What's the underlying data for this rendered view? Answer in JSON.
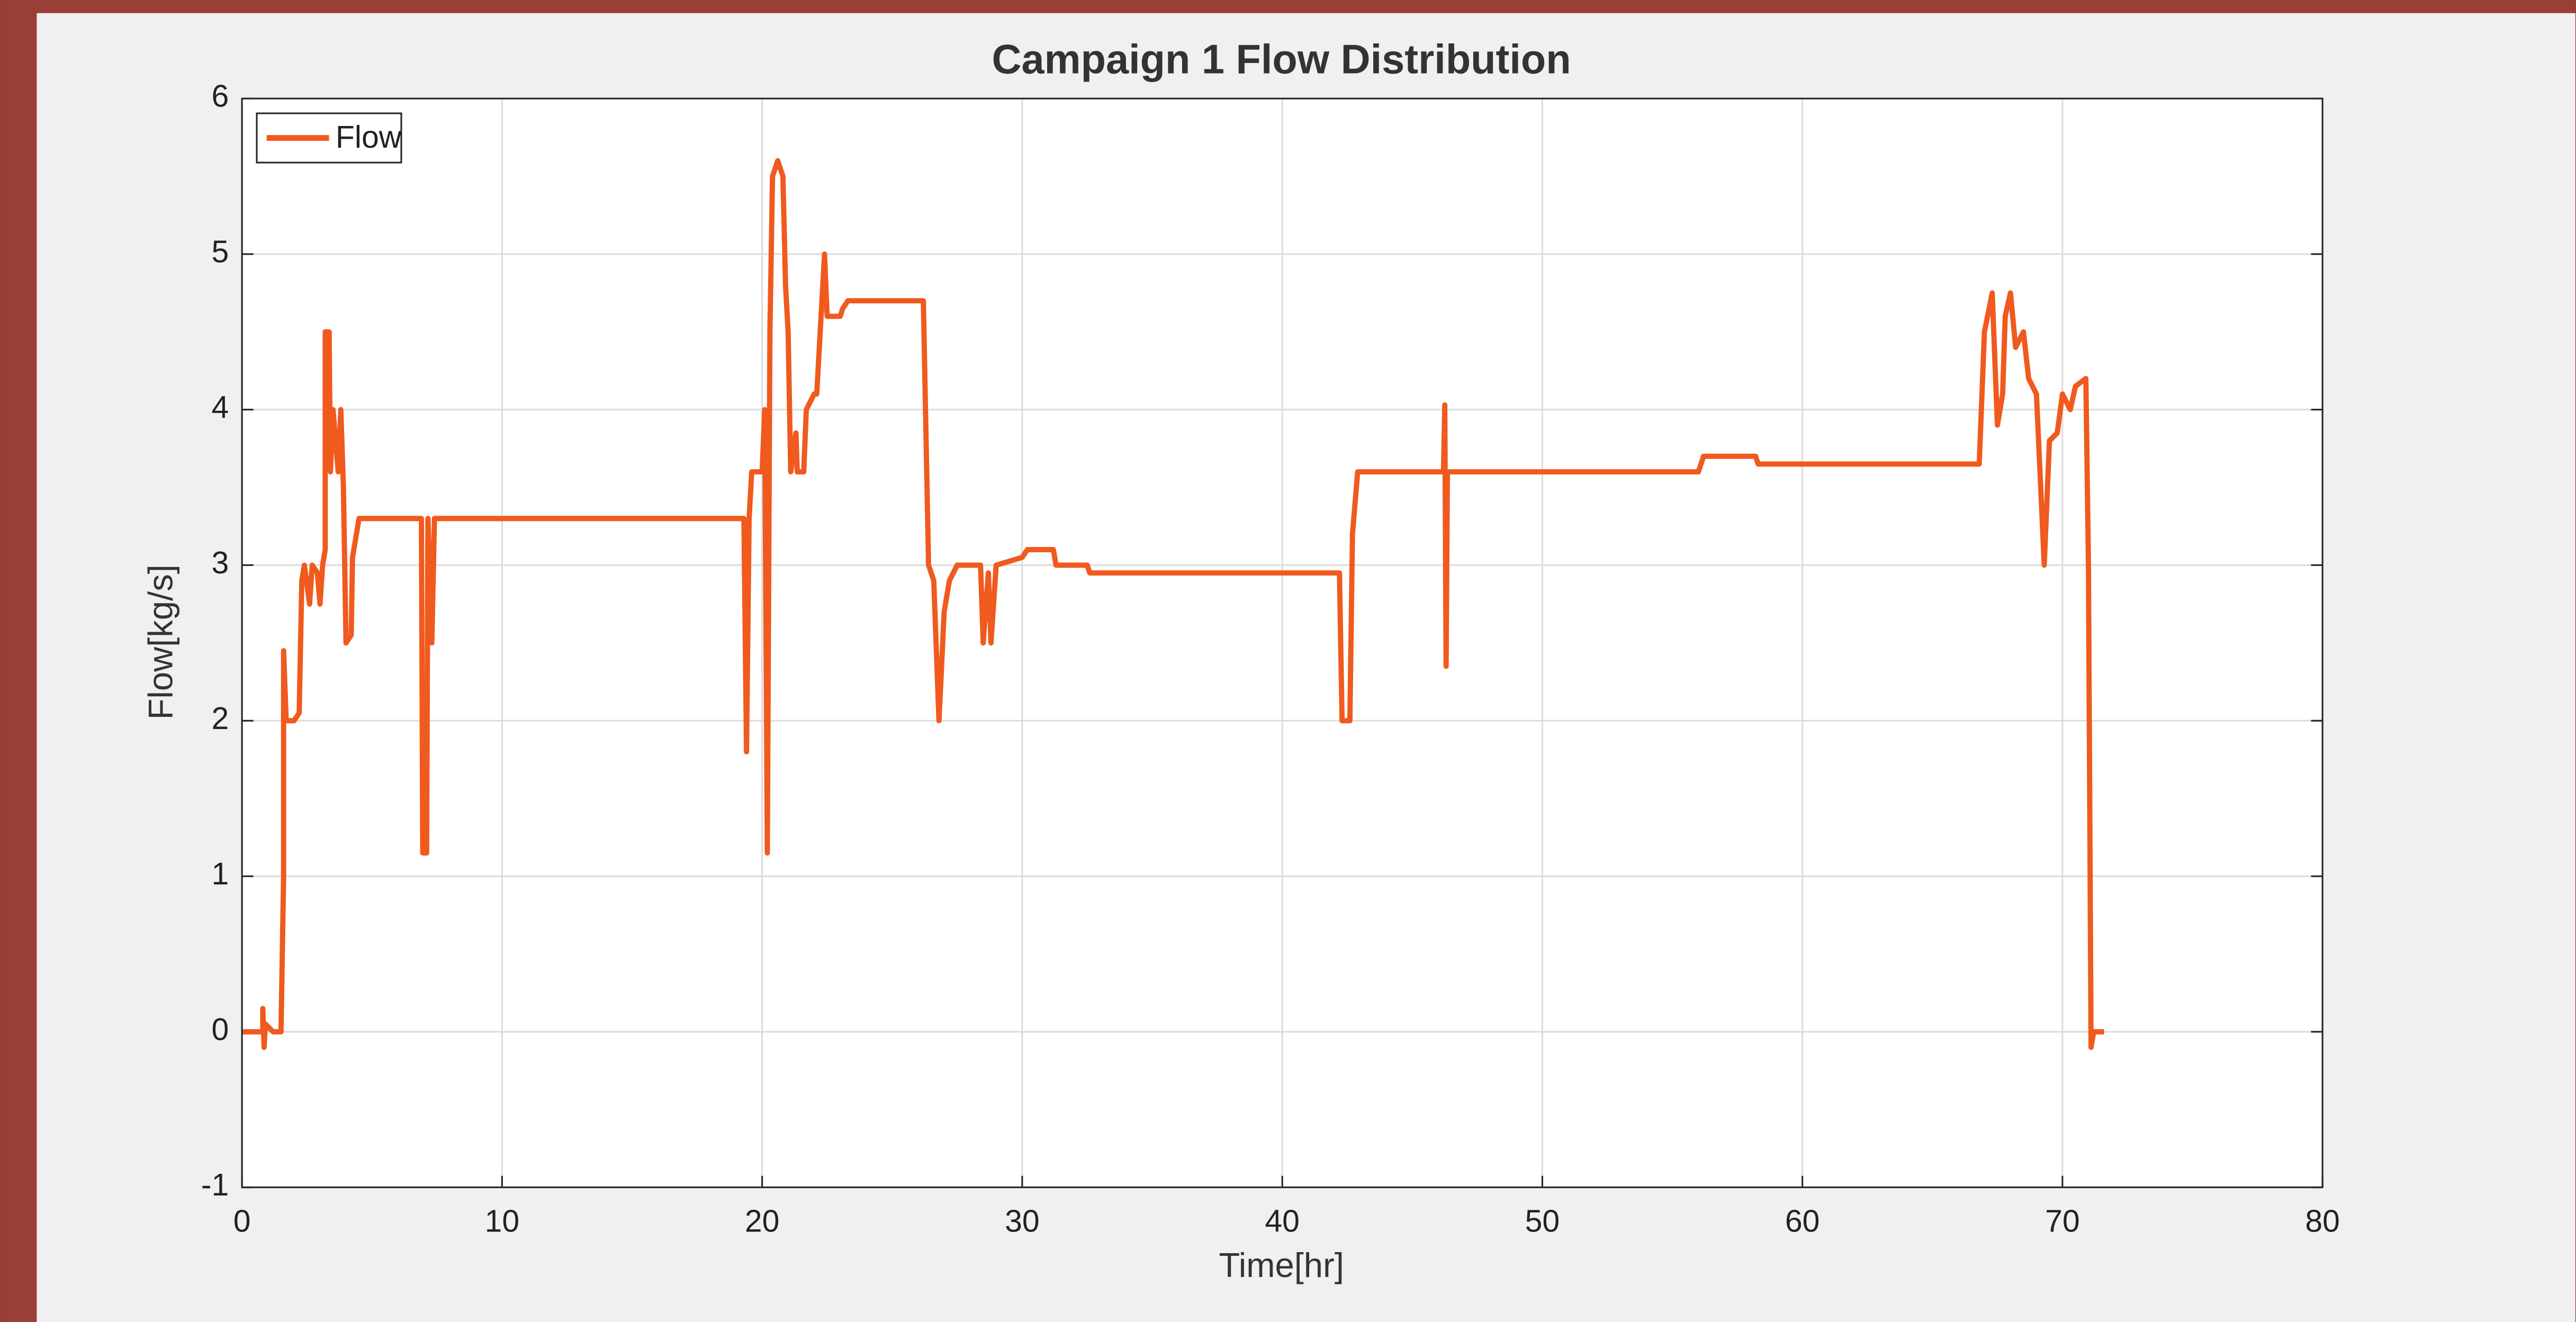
{
  "chart_data": {
    "type": "line",
    "title": "Campaign 1 Flow Distribution",
    "xlabel": "Time[hr]",
    "ylabel": "Flow[kg/s]",
    "xlim": [
      0,
      80
    ],
    "xticks": [
      0,
      10,
      20,
      30,
      40,
      50,
      60,
      70,
      80
    ],
    "ylim": [
      -1,
      6
    ],
    "yticks": [
      -1,
      0,
      1,
      2,
      3,
      4,
      5,
      6
    ],
    "grid": true,
    "legend": "upper left",
    "series": [
      {
        "name": "Flow",
        "color": "#f05a1e",
        "x": [
          0,
          0.8,
          0.8,
          0.85,
          0.9,
          1.2,
          1.5,
          1.6,
          1.6,
          1.7,
          2,
          2.2,
          2.3,
          2.4,
          2.6,
          2.7,
          2.9,
          3,
          3.1,
          3.2,
          3.2,
          3.35,
          3.4,
          3.5,
          3.7,
          3.8,
          3.9,
          4,
          4.2,
          4.25,
          4.4,
          4.5,
          6.9,
          6.95,
          7.1,
          7.15,
          7.3,
          7.4,
          19.3,
          19.4,
          19.5,
          19.6,
          20,
          20.1,
          20.2,
          20.3,
          20.4,
          20.6,
          20.8,
          20.9,
          21,
          21.1,
          21.3,
          21.35,
          21.6,
          21.7,
          22,
          22.1,
          22.4,
          22.5,
          23,
          23.1,
          23.3,
          26.2,
          26.4,
          26.6,
          26.8,
          27,
          27.2,
          27.5,
          28.4,
          28.5,
          28.7,
          28.8,
          29,
          30,
          30.2,
          31.2,
          31.3,
          32.5,
          32.6,
          42.2,
          42.3,
          42.6,
          42.7,
          42.9,
          43.5,
          46.2,
          46.25,
          46.3,
          46.35,
          56,
          56.2,
          58.2,
          58.3,
          66.8,
          67,
          67.3,
          67.5,
          67.7,
          67.8,
          68,
          68.2,
          68.5,
          68.7,
          69,
          69.3,
          69.5,
          69.8,
          70,
          70.3,
          70.5,
          70.9,
          71,
          71.1,
          71.2,
          71.6
        ],
        "values": [
          0,
          0,
          0.15,
          -0.1,
          0.05,
          0,
          0,
          1,
          2.45,
          2,
          2,
          2.05,
          2.9,
          3,
          2.75,
          3,
          2.95,
          2.75,
          3,
          3.1,
          4.5,
          4.5,
          3.6,
          4,
          3.6,
          4,
          3.5,
          2.5,
          2.55,
          3.05,
          3.2,
          3.3,
          3.3,
          1.15,
          1.15,
          3.3,
          2.5,
          3.3,
          3.3,
          1.8,
          3.3,
          3.6,
          3.6,
          4,
          1.15,
          4.5,
          5.5,
          5.6,
          5.5,
          4.8,
          4.5,
          3.6,
          3.85,
          3.6,
          3.6,
          4,
          4.1,
          4.1,
          5,
          4.6,
          4.6,
          4.65,
          4.7,
          4.7,
          3,
          2.9,
          2,
          2.7,
          2.9,
          3,
          3,
          2.5,
          2.95,
          2.5,
          3,
          3.05,
          3.1,
          3.1,
          3,
          3,
          2.95,
          2.95,
          2,
          2,
          3.2,
          3.6,
          3.6,
          3.6,
          4.03,
          2.35,
          3.6,
          3.6,
          3.7,
          3.7,
          3.65,
          3.65,
          4.5,
          4.75,
          3.9,
          4.1,
          4.6,
          4.75,
          4.4,
          4.5,
          4.2,
          4.1,
          3,
          3.8,
          3.85,
          4.1,
          4,
          4.15,
          4.2,
          3,
          -0.1,
          0,
          0
        ]
      }
    ]
  }
}
